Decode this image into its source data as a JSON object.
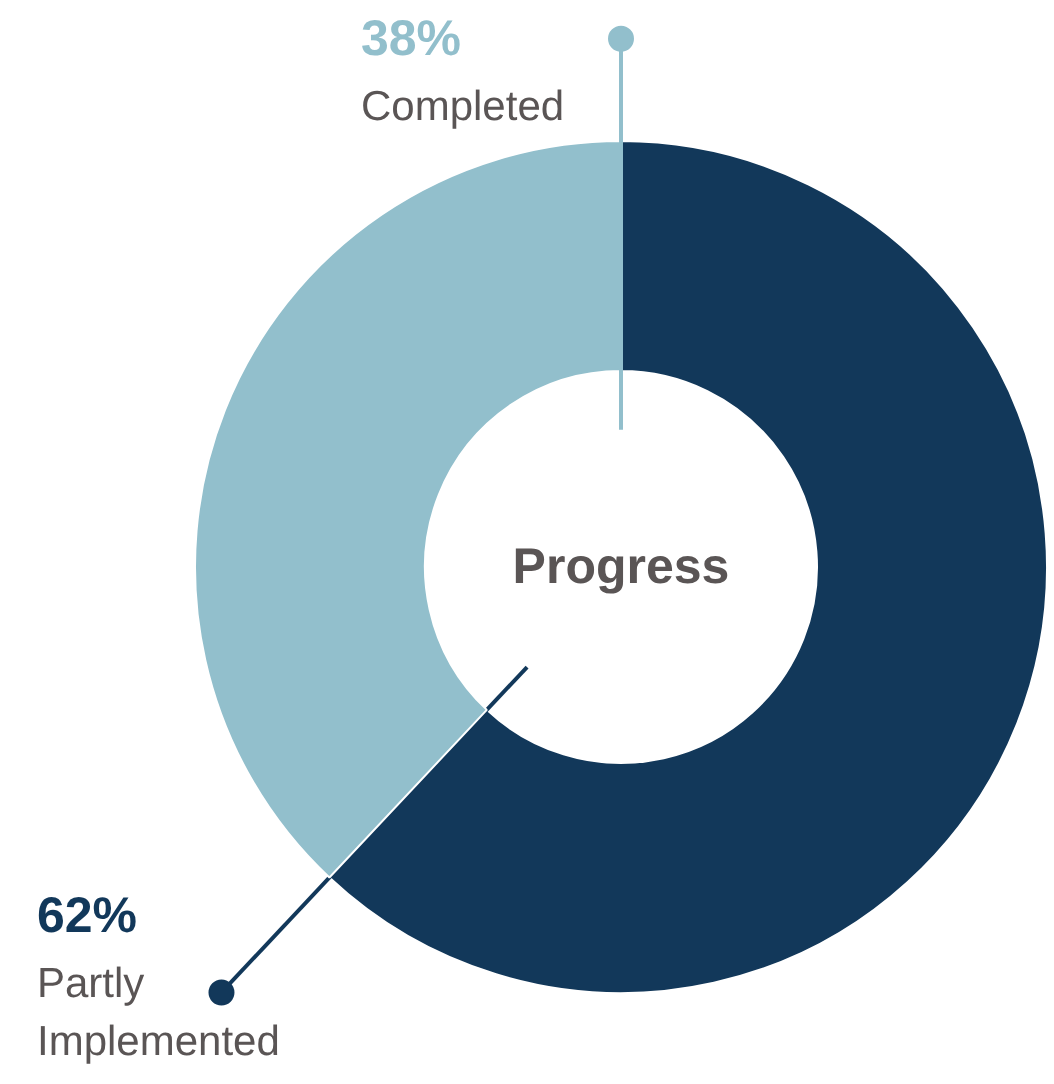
{
  "chart_data": {
    "type": "donut",
    "title": "Progress",
    "categories": [
      "Partly Implemented",
      "Completed"
    ],
    "values": [
      62,
      38
    ],
    "colors": [
      "#12385a",
      "#92bfcc"
    ],
    "value_labels": [
      "62%",
      "38%"
    ]
  }
}
